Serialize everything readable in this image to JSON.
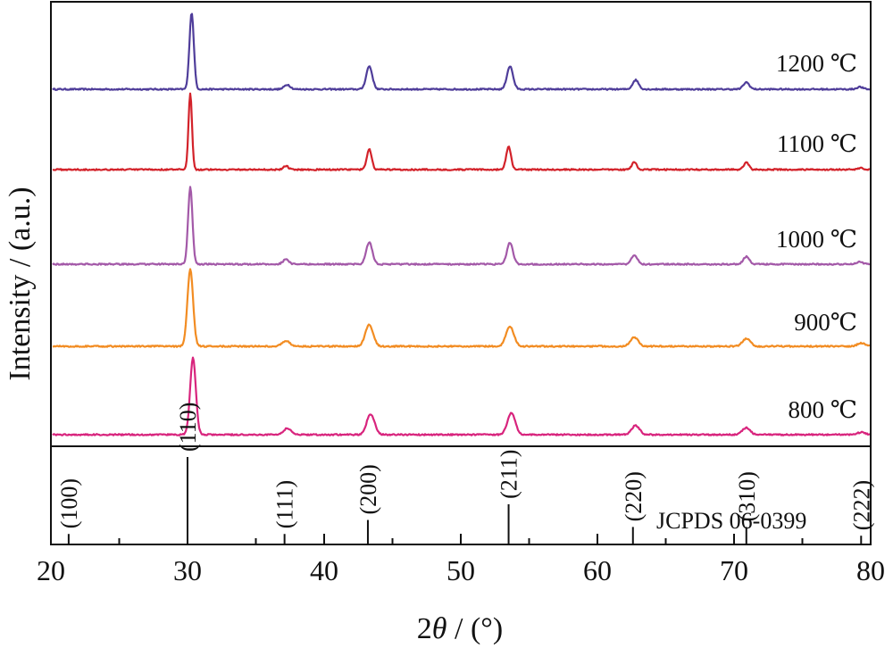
{
  "chart_data": {
    "type": "line",
    "xlabel_prefix": "2",
    "xlabel_theta": "θ",
    "xlabel_suffix": " / (°)",
    "ylabel": "Intensity / (a.u.)",
    "xlim": [
      20,
      80
    ],
    "x_ticks": [
      "20",
      "30",
      "40",
      "50",
      "60",
      "70",
      "80"
    ],
    "reference_label": "JCPDS 06-0399",
    "peaks": [
      {
        "pos": 30.2,
        "height": 1.0
      },
      {
        "pos": 37.2,
        "height": 0.06
      },
      {
        "pos": 43.3,
        "height": 0.26
      },
      {
        "pos": 53.6,
        "height": 0.26
      },
      {
        "pos": 62.7,
        "height": 0.12
      },
      {
        "pos": 70.9,
        "height": 0.1
      },
      {
        "pos": 79.3,
        "height": 0.03
      }
    ],
    "series": [
      {
        "name": "1200 ℃",
        "color": "#4f3d9a",
        "scale": 1.0,
        "width": 1.0,
        "peaks": [
          {
            "pos": 30.3,
            "height": 1.0
          },
          {
            "pos": 37.3,
            "height": 0.06
          },
          {
            "pos": 43.3,
            "height": 0.3
          },
          {
            "pos": 53.6,
            "height": 0.3
          },
          {
            "pos": 62.8,
            "height": 0.12
          },
          {
            "pos": 70.9,
            "height": 0.09
          },
          {
            "pos": 79.2,
            "height": 0.03
          }
        ]
      },
      {
        "name": "1100 ℃",
        "color": "#d3222a",
        "scale": 1.0,
        "width": 0.8,
        "peaks": [
          {
            "pos": 30.2,
            "height": 1.0
          },
          {
            "pos": 37.2,
            "height": 0.05
          },
          {
            "pos": 43.3,
            "height": 0.27
          },
          {
            "pos": 53.5,
            "height": 0.3
          },
          {
            "pos": 62.7,
            "height": 0.1
          },
          {
            "pos": 70.9,
            "height": 0.1
          },
          {
            "pos": 79.3,
            "height": 0.02
          }
        ]
      },
      {
        "name": "1000 ℃",
        "color": "#a359a8",
        "scale": 1.0,
        "width": 1.0,
        "peaks": [
          {
            "pos": 30.2,
            "height": 1.0
          },
          {
            "pos": 37.2,
            "height": 0.06
          },
          {
            "pos": 43.3,
            "height": 0.29
          },
          {
            "pos": 53.6,
            "height": 0.28
          },
          {
            "pos": 62.7,
            "height": 0.12
          },
          {
            "pos": 70.9,
            "height": 0.1
          },
          {
            "pos": 79.2,
            "height": 0.03
          }
        ]
      },
      {
        "name": "900℃",
        "color": "#f28c22",
        "scale": 1.0,
        "width": 1.3,
        "peaks": [
          {
            "pos": 30.2,
            "height": 1.0
          },
          {
            "pos": 37.2,
            "height": 0.07
          },
          {
            "pos": 43.3,
            "height": 0.28
          },
          {
            "pos": 53.6,
            "height": 0.26
          },
          {
            "pos": 62.7,
            "height": 0.12
          },
          {
            "pos": 70.9,
            "height": 0.1
          },
          {
            "pos": 79.3,
            "height": 0.04
          }
        ]
      },
      {
        "name": "800 ℃",
        "color": "#d8247d",
        "scale": 1.0,
        "width": 1.3,
        "peaks": [
          {
            "pos": 30.4,
            "height": 1.0
          },
          {
            "pos": 37.3,
            "height": 0.08
          },
          {
            "pos": 43.4,
            "height": 0.27
          },
          {
            "pos": 53.7,
            "height": 0.28
          },
          {
            "pos": 62.8,
            "height": 0.12
          },
          {
            "pos": 70.9,
            "height": 0.09
          },
          {
            "pos": 79.3,
            "height": 0.03
          }
        ]
      }
    ],
    "reference_lines": [
      {
        "hkl": "(100)",
        "pos": 21.3,
        "intensity": 0.12
      },
      {
        "hkl": "(110)",
        "pos": 30.0,
        "intensity": 1.0
      },
      {
        "hkl": "(111)",
        "pos": 37.1,
        "intensity": 0.12
      },
      {
        "hkl": "(200)",
        "pos": 43.2,
        "intensity": 0.28
      },
      {
        "hkl": "(211)",
        "pos": 53.5,
        "intensity": 0.46
      },
      {
        "hkl": "(220)",
        "pos": 62.6,
        "intensity": 0.2
      },
      {
        "hkl": "(310)",
        "pos": 70.9,
        "intensity": 0.2
      },
      {
        "hkl": "(222)",
        "pos": 79.3,
        "intensity": 0.1
      }
    ],
    "grid": false,
    "legend": "labels at right end of each trace"
  }
}
